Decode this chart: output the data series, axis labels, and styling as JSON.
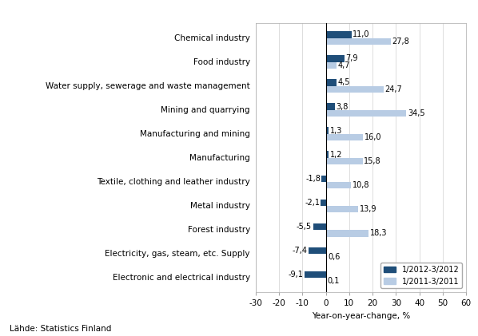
{
  "categories": [
    "Electronic and electrical industry",
    "Electricity, gas, steam, etc. Supply",
    "Forest industry",
    "Metal industry",
    "Textile, clothing and leather industry",
    "Manufacturing",
    "Manufacturing and mining",
    "Mining and quarrying",
    "Water supply, sewerage and waste management",
    "Food industry",
    "Chemical industry"
  ],
  "values_2012": [
    -9.1,
    -7.4,
    -5.5,
    -2.1,
    -1.8,
    1.2,
    1.3,
    3.8,
    4.5,
    7.9,
    11.0
  ],
  "values_2011": [
    0.1,
    0.6,
    18.3,
    13.9,
    10.8,
    15.8,
    16.0,
    34.5,
    24.7,
    4.7,
    27.8
  ],
  "color_2012": "#1f4e79",
  "color_2011": "#b8cce4",
  "xlim": [
    -30,
    60
  ],
  "xticks": [
    -30,
    -20,
    -10,
    0,
    10,
    20,
    30,
    40,
    50,
    60
  ],
  "xlabel": "Year-on-year-change, %",
  "legend_2012": "1/2012-3/2012",
  "legend_2011": "1/2011-3/2011",
  "source": "Lähde: Statistics Finland",
  "bar_height": 0.28,
  "label_fontsize": 7.5,
  "tick_fontsize": 7.5,
  "value_fontsize": 7.0
}
